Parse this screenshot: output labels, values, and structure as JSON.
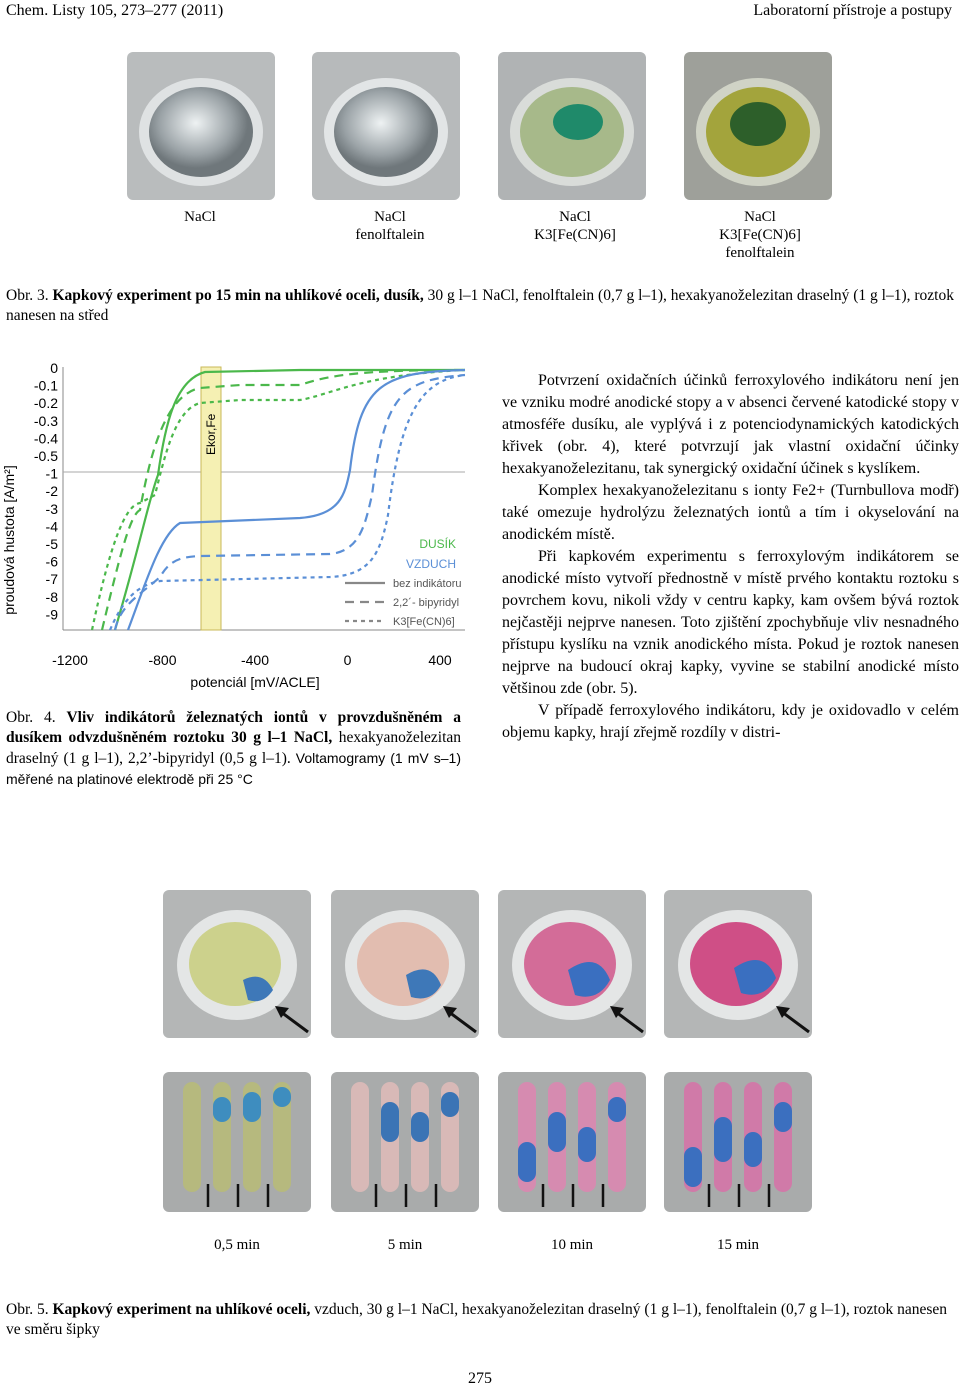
{
  "header": {
    "left": "Chem. Listy 105, 273–277 (2011)",
    "right": "Laboratorní přístroje a postupy"
  },
  "fig3": {
    "labels": [
      {
        "l1": "NaCl",
        "l2": "",
        "l3": ""
      },
      {
        "l1": "NaCl",
        "l2": "fenolftalein",
        "l3": ""
      },
      {
        "l1": "NaCl",
        "l2": "K3[Fe(CN)6]",
        "l3": ""
      },
      {
        "l1": "NaCl",
        "l2": "K3[Fe(CN)6]",
        "l3": "fenolftalein"
      }
    ],
    "caption_prefix": "Obr. 3.",
    "caption_bold": "Kapkový experiment po 15 min na uhlíkové oceli, dusík,",
    "caption_rest": "30 g l–1 NaCl, fenolftalein (0,7 g l–1), hexakyanoželezitan draselný (1 g l–1), roztok nanesen na střed"
  },
  "chart_data": {
    "type": "line",
    "xlabel": "potenciál [mV/ACLE]",
    "ylabel": "proudová hustota [A/m²]",
    "xlim": [
      -1250,
      450
    ],
    "x_ticks": [
      "-1200",
      "-800",
      "-400",
      "0",
      "400"
    ],
    "y_ticks": [
      "0",
      "-0.1",
      "-0.2",
      "-0.3",
      "-0.4",
      "-0.5",
      "-1",
      "-2",
      "-3",
      "-4",
      "-5",
      "-6",
      "-7",
      "-8",
      "-9"
    ],
    "band_label": "Ekor,Fe",
    "legend_groups": [
      "DUSÍK",
      "VZDUCH"
    ],
    "legend_entries": [
      "bez indikátoru",
      "2,2´- bipyridyl",
      "K3[Fe(CN)6]"
    ],
    "series": [
      {
        "name": "DUSÍK bez indikátoru",
        "color": "#4bb84b",
        "style": "solid"
      },
      {
        "name": "DUSÍK 2,2´- bipyridyl",
        "color": "#4bb84b",
        "style": "dashed"
      },
      {
        "name": "DUSÍK K3[Fe(CN)6]",
        "color": "#4bb84b",
        "style": "dotted"
      },
      {
        "name": "VZDUCH bez indikátoru",
        "color": "#5b8fd6",
        "style": "solid"
      },
      {
        "name": "VZDUCH 2,2´- bipyridyl",
        "color": "#5b8fd6",
        "style": "dashed"
      },
      {
        "name": "VZDUCH K3[Fe(CN)6]",
        "color": "#5b8fd6",
        "style": "dotted"
      }
    ]
  },
  "fig4": {
    "caption_prefix": "Obr. 4.",
    "caption_bold": "Vliv indikátorů železnatých iontů v provzdušněném a dusíkem odvzdušněném roztoku 30 g l–1 NaCl,",
    "caption_rest": "hexakyanoželezitan draselný (1 g l–1), 2,2’-bipyridyl (0,5 g l–1).",
    "caption_tail": "Voltamogramy (1 mV s–1) měřené na platinové elektrodě při 25 °C"
  },
  "body": {
    "p1": "Potvrzení oxidačních účinků ferroxylového indikátoru není jen ve vzniku modré anodické stopy a v absenci červené katodické stopy v atmosféře dusíku, ale vyplývá i z potenciodynamických katodických křivek (obr. 4), které potvrzují jak vlastní oxidační účinky hexakyanoželezitanu, tak synergický oxidační účinek s kyslíkem.",
    "p2": "Komplex hexakyanoželezitanu s ionty Fe2+ (Turnbullova modř) také omezuje hydrolýzu železnatých iontů a tím i okyselování na anodickém místě.",
    "p3": "Při kapkovém experimentu s ferroxylovým indikátorem se anodické místo vytvoří přednostně v místě prvého kontaktu roztoku s povrchem kovu, nikoli vždy v centru kapky, kam ovšem bývá roztok nejčastěji nejprve nanesen. Toto zjištění zpochybňuje vliv nesnadného přístupu kyslíku na vznik anodického místa. Pokud je roztok nanesen nejprve na budoucí okraj kapky, vyvine se stabilní anodické místo většinou zde (obr. 5).",
    "p4": "V případě ferroxylového indikátoru, kdy je oxidovadlo v celém objemu kapky, hrají zřejmě rozdíly v distri-"
  },
  "fig5": {
    "time_labels": [
      "0,5 min",
      "5 min",
      "10 min",
      "15 min"
    ],
    "caption_prefix": "Obr. 5.",
    "caption_bold": "Kapkový experiment na uhlíkové oceli,",
    "caption_rest": "vzduch, 30 g l–1 NaCl, hexakyanoželezitan draselný (1 g l–1), fenolftalein (0,7 g l–1), roztok nanesen ve směru šipky"
  },
  "footer": {
    "page_number": "275"
  }
}
